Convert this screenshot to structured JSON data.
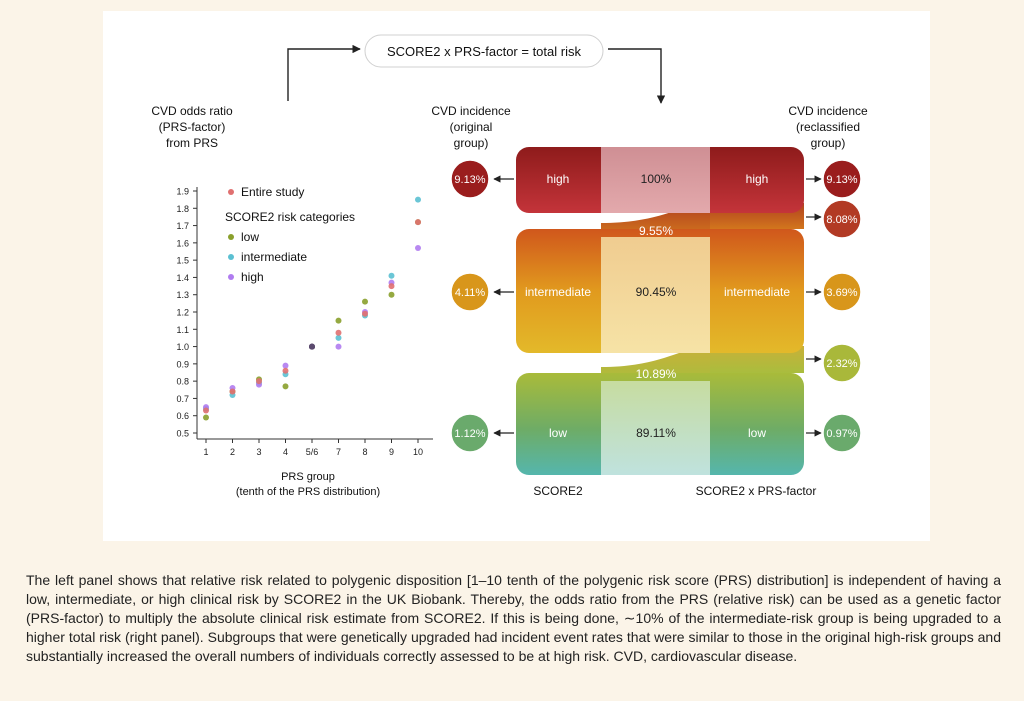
{
  "formula": "SCORE2 x PRS-factor = total risk",
  "scatter": {
    "title_lines": [
      "CVD odds ratio",
      "(PRS-factor)",
      "from PRS"
    ],
    "legend": {
      "entire": "Entire study",
      "header": "SCORE2 risk categories",
      "low": "low",
      "intermediate": "intermediate",
      "high": "high"
    },
    "xlabel_lines": [
      "PRS group",
      "(tenth of the PRS distribution)"
    ]
  },
  "chart_data": {
    "type": "scatter",
    "title": "",
    "xlabel": "PRS group (tenth of the PRS distribution)",
    "ylabel": "CVD odds ratio (PRS-factor) from PRS",
    "categories": [
      "1",
      "2",
      "3",
      "4",
      "5/6",
      "7",
      "8",
      "9",
      "10"
    ],
    "ylim": [
      0.5,
      1.9
    ],
    "yticks": [
      "0.5",
      "0.6",
      "0.7",
      "0.8",
      "0.9",
      "1.0",
      "1.1",
      "1.2",
      "1.3",
      "1.4",
      "1.5",
      "1.6",
      "1.7",
      "1.8",
      "1.9"
    ],
    "grid": false,
    "legend_position": "top-left",
    "series": [
      {
        "name": "Entire study",
        "color": "#e07070",
        "values": [
          0.63,
          0.74,
          0.8,
          0.86,
          1.0,
          1.08,
          1.19,
          1.35,
          1.72
        ]
      },
      {
        "name": "low",
        "color": "#8aa02c",
        "values": [
          0.59,
          0.74,
          0.81,
          0.77,
          1.0,
          1.15,
          1.26,
          1.3,
          1.72
        ]
      },
      {
        "name": "intermediate",
        "color": "#5bc0d2",
        "values": [
          0.64,
          0.72,
          0.79,
          0.84,
          1.0,
          1.05,
          1.18,
          1.41,
          1.85
        ]
      },
      {
        "name": "high",
        "color": "#b07cf0",
        "values": [
          0.65,
          0.76,
          0.78,
          0.89,
          1.0,
          1.0,
          1.2,
          1.37,
          1.57
        ]
      }
    ]
  },
  "flow": {
    "left_header_lines": [
      "CVD incidence",
      "(original",
      "group)"
    ],
    "right_header_lines": [
      "CVD incidence",
      "(reclassified",
      "group)"
    ],
    "groups": {
      "high": {
        "label": "high",
        "pct": "100%"
      },
      "intermediate": {
        "label": "intermediate",
        "pct": "90.45%"
      },
      "low": {
        "label": "low",
        "pct": "89.11%"
      }
    },
    "upgrade_intermediate": "9.55%",
    "upgrade_low": "10.89%",
    "left_circles": [
      "9.13%",
      "4.11%",
      "1.12%"
    ],
    "right_circles": [
      "9.13%",
      "8.08%",
      "3.69%",
      "2.32%",
      "0.97%"
    ],
    "left_footer": "SCORE2",
    "right_footer": "SCORE2 x PRS-factor",
    "colors": {
      "high": "#9a1d1d",
      "intermediate": "#d8961b",
      "low": "#6aaa6c",
      "teal": "#5bbcab"
    }
  },
  "caption": "The left panel shows that relative risk related to polygenic disposition [1–10 tenth of the polygenic risk score (PRS) distribution] is independent of having a low, intermediate, or high clinical risk by SCORE2 in the UK Biobank. Thereby, the odds ratio from the PRS (relative risk) can be used as a genetic factor (PRS-factor) to multiply the absolute clinical risk estimate from SCORE2. If this is being done, ∼10% of the intermediate-risk group is being upgraded to a higher total risk (right panel). Subgroups that were genetically upgraded had incident event rates that were similar to those in the original high-risk groups and substantially increased the overall numbers of individuals correctly assessed to be at high risk. CVD, cardiovascular disease."
}
